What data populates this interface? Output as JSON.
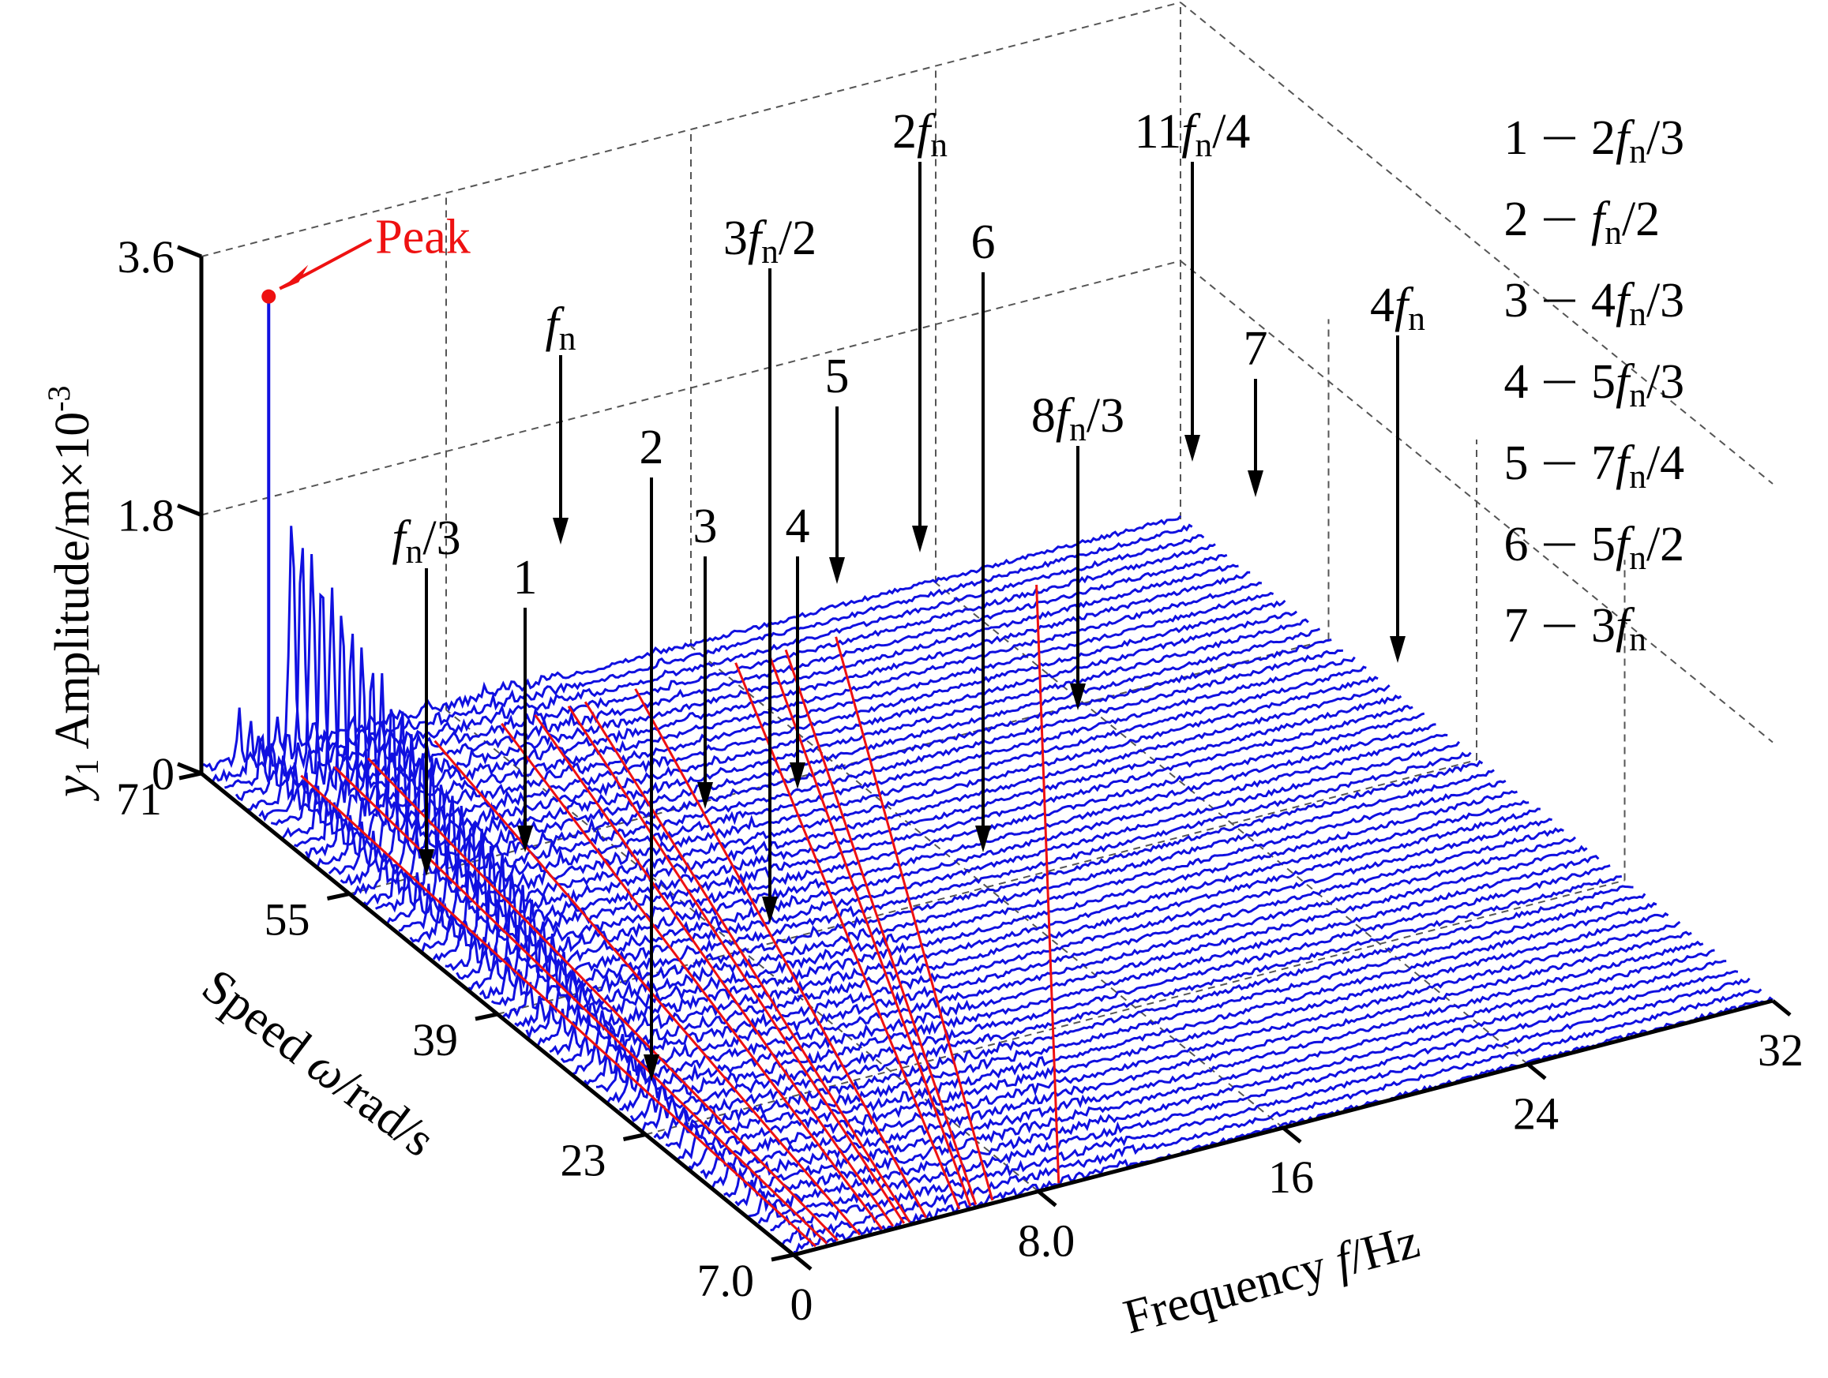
{
  "chart_data": {
    "type": "waterfall-3d",
    "title": "",
    "zlabel_var": "y",
    "zlabel_sub": "1",
    "zlabel_text": " Amplitude/m×10",
    "zlabel_exp": "-3",
    "ylabel_text": "Speed ",
    "ylabel_var": "ω",
    "ylabel_unit": "/rad/s",
    "xlabel_text": "Frequency ",
    "xlabel_var": "f",
    "xlabel_unit": "/Hz",
    "x_ticks": [
      {
        "value": 0,
        "label": "0"
      },
      {
        "value": 8,
        "label": "8.0"
      },
      {
        "value": 16,
        "label": "16"
      },
      {
        "value": 24,
        "label": "24"
      },
      {
        "value": 32,
        "label": "32"
      }
    ],
    "y_ticks": [
      {
        "value": 7,
        "label": "7.0"
      },
      {
        "value": 23,
        "label": "23"
      },
      {
        "value": 39,
        "label": "39"
      },
      {
        "value": 55,
        "label": "55"
      },
      {
        "value": 71,
        "label": "71"
      }
    ],
    "z_ticks": [
      {
        "value": 0,
        "label": "0"
      },
      {
        "value": 1.8,
        "label": "1.8"
      },
      {
        "value": 3.6,
        "label": "3.6"
      }
    ],
    "xlim": [
      0,
      32
    ],
    "ylim": [
      7,
      71
    ],
    "zlim": [
      0,
      3.6
    ],
    "natural_frequency_hz": 1.5,
    "peak": {
      "label": "Peak",
      "speed": 71,
      "frequency": 2.2,
      "amplitude": 3.2
    },
    "series_color": "#1010e0",
    "line_color": "#ee1111",
    "dot_color": "#ee1111",
    "harmonics": [
      {
        "key": "fn3",
        "multiple": 0.3333,
        "label_parts": [
          [
            "f",
            1
          ],
          [
            "n",
            2
          ],
          [
            "/3",
            0
          ]
        ]
      },
      {
        "key": "1",
        "multiple": 0.6667,
        "label_parts": [
          [
            "1",
            0
          ]
        ]
      },
      {
        "key": "fn",
        "multiple": 1.0,
        "label_parts": [
          [
            "f",
            1
          ],
          [
            "n",
            2
          ]
        ]
      },
      {
        "key": "2",
        "multiple": 0.5,
        "label_parts": [
          [
            "2",
            0
          ]
        ]
      },
      {
        "key": "3",
        "multiple": 1.3333,
        "label_parts": [
          [
            "3",
            0
          ]
        ]
      },
      {
        "key": "3fn2",
        "multiple": 1.5,
        "label_parts": [
          [
            "3",
            0
          ],
          [
            "f",
            1
          ],
          [
            "n",
            2
          ],
          [
            "/2",
            0
          ]
        ]
      },
      {
        "key": "4",
        "multiple": 1.6667,
        "label_parts": [
          [
            "4",
            0
          ]
        ]
      },
      {
        "key": "5",
        "multiple": 1.75,
        "label_parts": [
          [
            "5",
            0
          ]
        ]
      },
      {
        "key": "2fn",
        "multiple": 2.0,
        "label_parts": [
          [
            "2",
            0
          ],
          [
            "f",
            1
          ],
          [
            "n",
            2
          ]
        ]
      },
      {
        "key": "6",
        "multiple": 2.5,
        "label_parts": [
          [
            "6",
            0
          ]
        ]
      },
      {
        "key": "8fn3",
        "multiple": 2.6667,
        "label_parts": [
          [
            "8",
            0
          ],
          [
            "f",
            1
          ],
          [
            "n",
            2
          ],
          [
            "/3",
            0
          ]
        ]
      },
      {
        "key": "11fn4",
        "multiple": 2.75,
        "label_parts": [
          [
            "11",
            0
          ],
          [
            "f",
            1
          ],
          [
            "n",
            2
          ],
          [
            "/4",
            0
          ]
        ]
      },
      {
        "key": "7",
        "multiple": 3.0,
        "label_parts": [
          [
            "7",
            0
          ]
        ]
      },
      {
        "key": "4fn",
        "multiple": 4.0,
        "label_parts": [
          [
            "4",
            0
          ],
          [
            "f",
            1
          ],
          [
            "n",
            2
          ]
        ]
      }
    ],
    "legend": [
      {
        "num": "1",
        "parts": [
          [
            "2",
            0
          ],
          [
            "f",
            1
          ],
          [
            "n",
            2
          ],
          [
            "/3",
            0
          ]
        ]
      },
      {
        "num": "2",
        "parts": [
          [
            "f",
            1
          ],
          [
            "n",
            2
          ],
          [
            "/2",
            0
          ]
        ]
      },
      {
        "num": "3",
        "parts": [
          [
            "4",
            0
          ],
          [
            "f",
            1
          ],
          [
            "n",
            2
          ],
          [
            "/3",
            0
          ]
        ]
      },
      {
        "num": "4",
        "parts": [
          [
            "5",
            0
          ],
          [
            "f",
            1
          ],
          [
            "n",
            2
          ],
          [
            "/3",
            0
          ]
        ]
      },
      {
        "num": "5",
        "parts": [
          [
            "7",
            0
          ],
          [
            "f",
            1
          ],
          [
            "n",
            2
          ],
          [
            "/4",
            0
          ]
        ]
      },
      {
        "num": "6",
        "parts": [
          [
            "5",
            0
          ],
          [
            "f",
            1
          ],
          [
            "n",
            2
          ],
          [
            "/2",
            0
          ]
        ]
      },
      {
        "num": "7",
        "parts": [
          [
            "3",
            0
          ],
          [
            "f",
            1
          ],
          [
            "n",
            2
          ]
        ]
      }
    ]
  }
}
